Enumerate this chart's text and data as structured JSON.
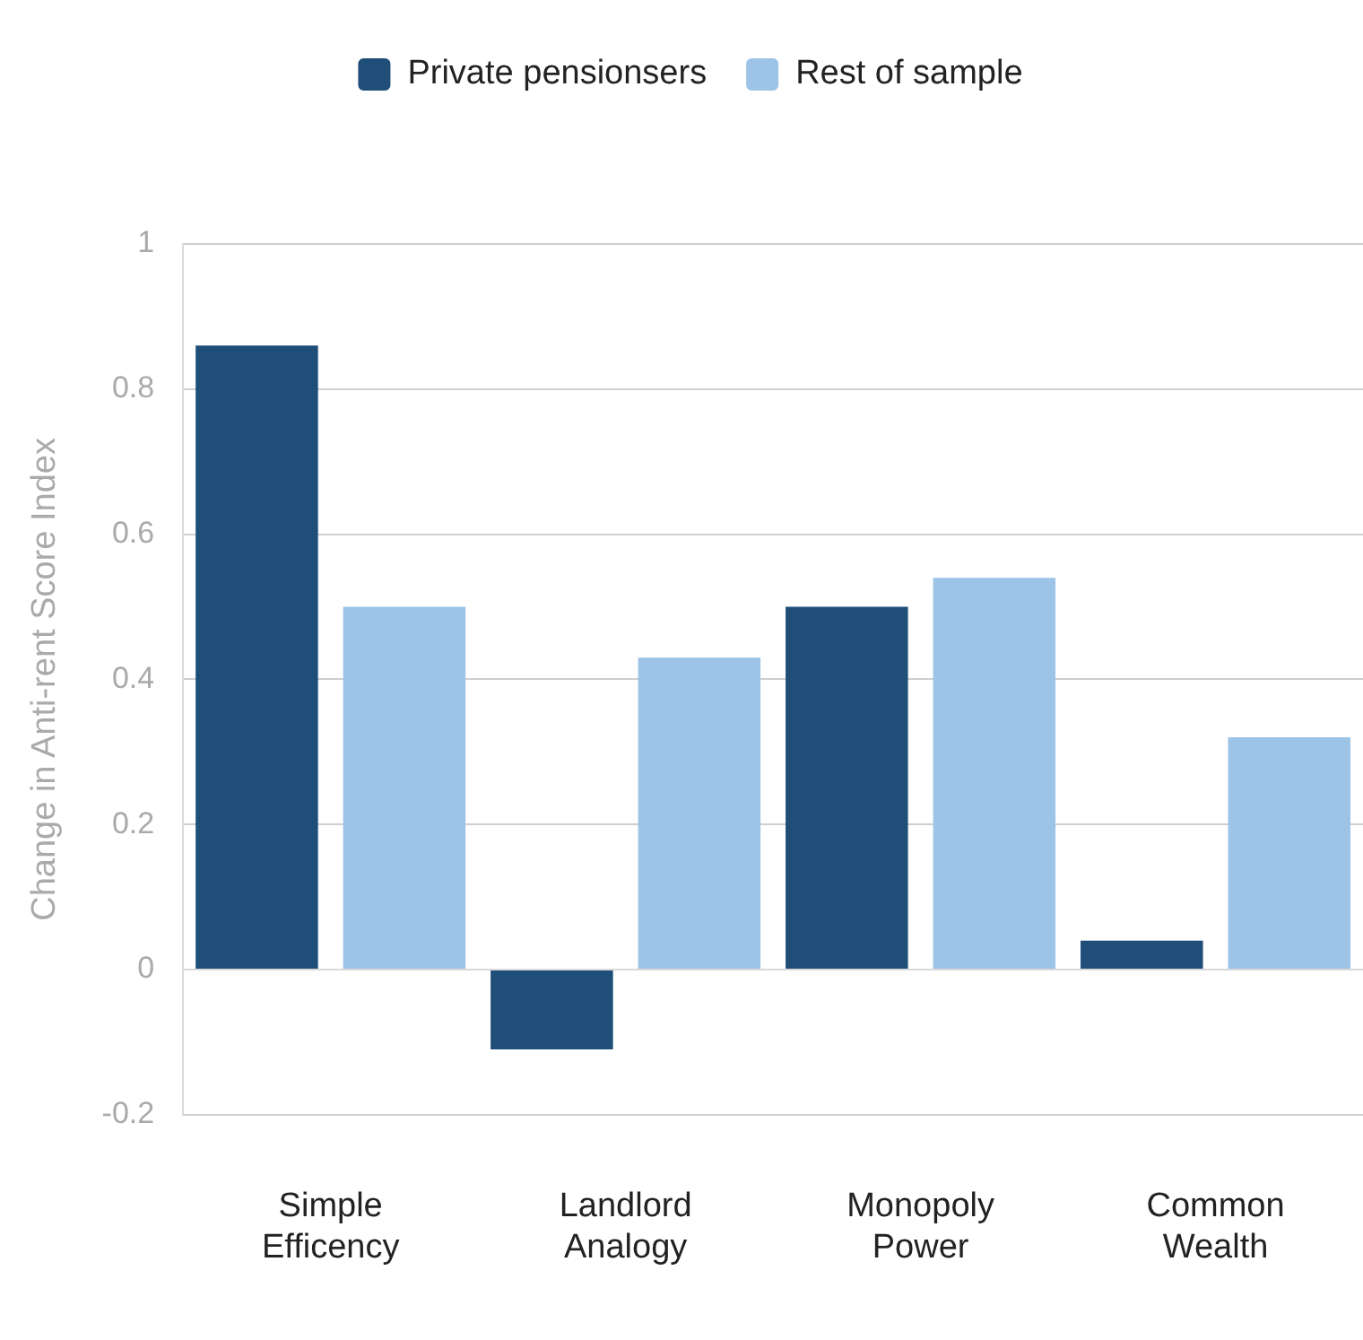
{
  "chart_data": {
    "type": "bar",
    "ylabel": "Change in Anti-rent Score Index",
    "categories": [
      "Simple Efficency",
      "Landlord Analogy",
      "Monopoly Power",
      "Common Wealth"
    ],
    "series": [
      {
        "name": "Private pensionsers",
        "color": "#1f4e79",
        "values": [
          0.86,
          -0.11,
          0.5,
          0.04
        ]
      },
      {
        "name": "Rest of sample",
        "color": "#9dc3e6",
        "values": [
          0.5,
          0.43,
          0.54,
          0.32
        ]
      }
    ],
    "ylim": [
      -0.2,
      1
    ],
    "yticks": [
      -0.2,
      0,
      0.2,
      0.4,
      0.6,
      0.8,
      1
    ],
    "grid": "y",
    "legend": "top"
  }
}
